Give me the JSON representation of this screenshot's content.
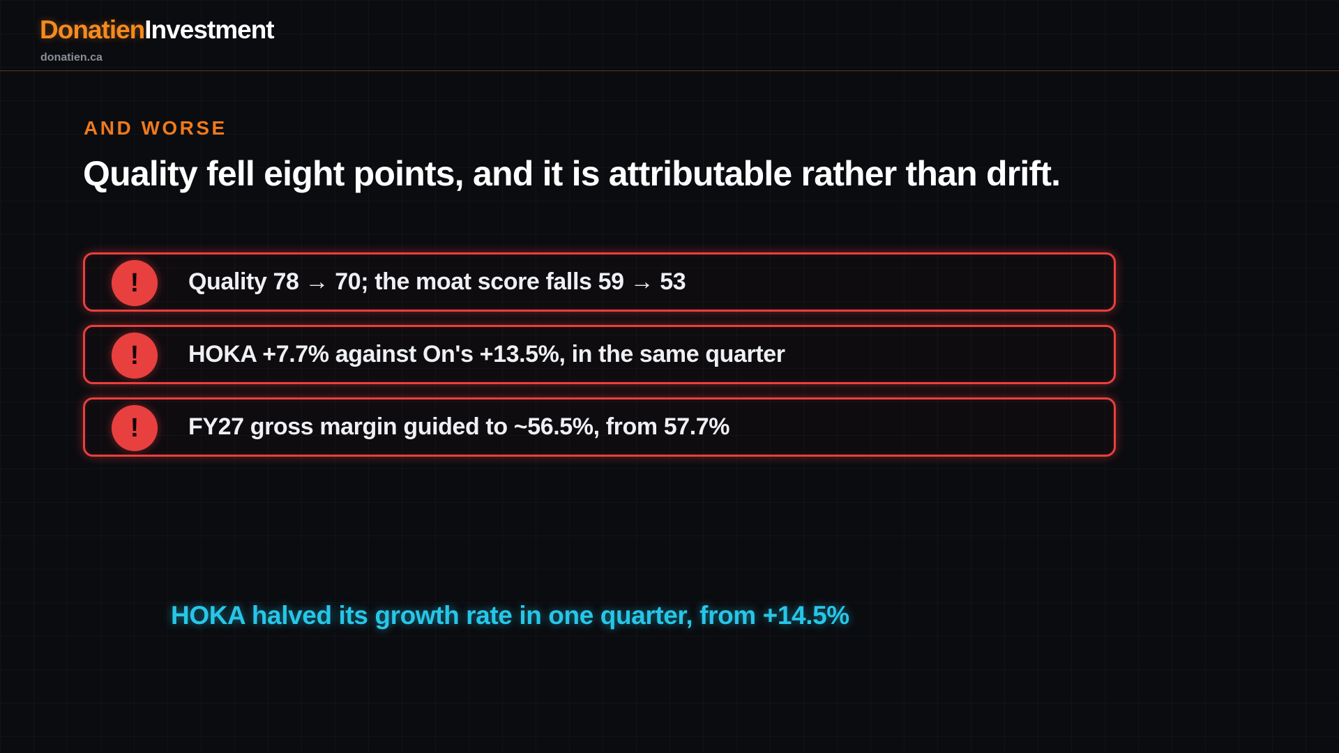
{
  "header": {
    "brand_part1": "Donatien",
    "brand_part2": "Investment",
    "domain": "donatien.ca"
  },
  "slide": {
    "eyebrow": "AND WORSE",
    "headline": "Quality fell eight points, and it is attributable rather than drift.",
    "alerts": [
      {
        "icon": "exclamation-icon",
        "glyph": "!",
        "text": "Quality 78 → 70; the moat score falls 59 → 53"
      },
      {
        "icon": "exclamation-icon",
        "glyph": "!",
        "text": "HOKA +7.7% against On's +13.5%, in the same quarter"
      },
      {
        "icon": "exclamation-icon",
        "glyph": "!",
        "text": "FY27 gross margin guided to ~56.5%, from 57.7%"
      }
    ],
    "callout": "HOKA halved its growth rate in one quarter, from +14.5%"
  },
  "colors": {
    "accent_orange": "#f58a1f",
    "alert_red": "#e8403f",
    "callout_cyan": "#27c6e8",
    "background": "#0b0c10"
  }
}
